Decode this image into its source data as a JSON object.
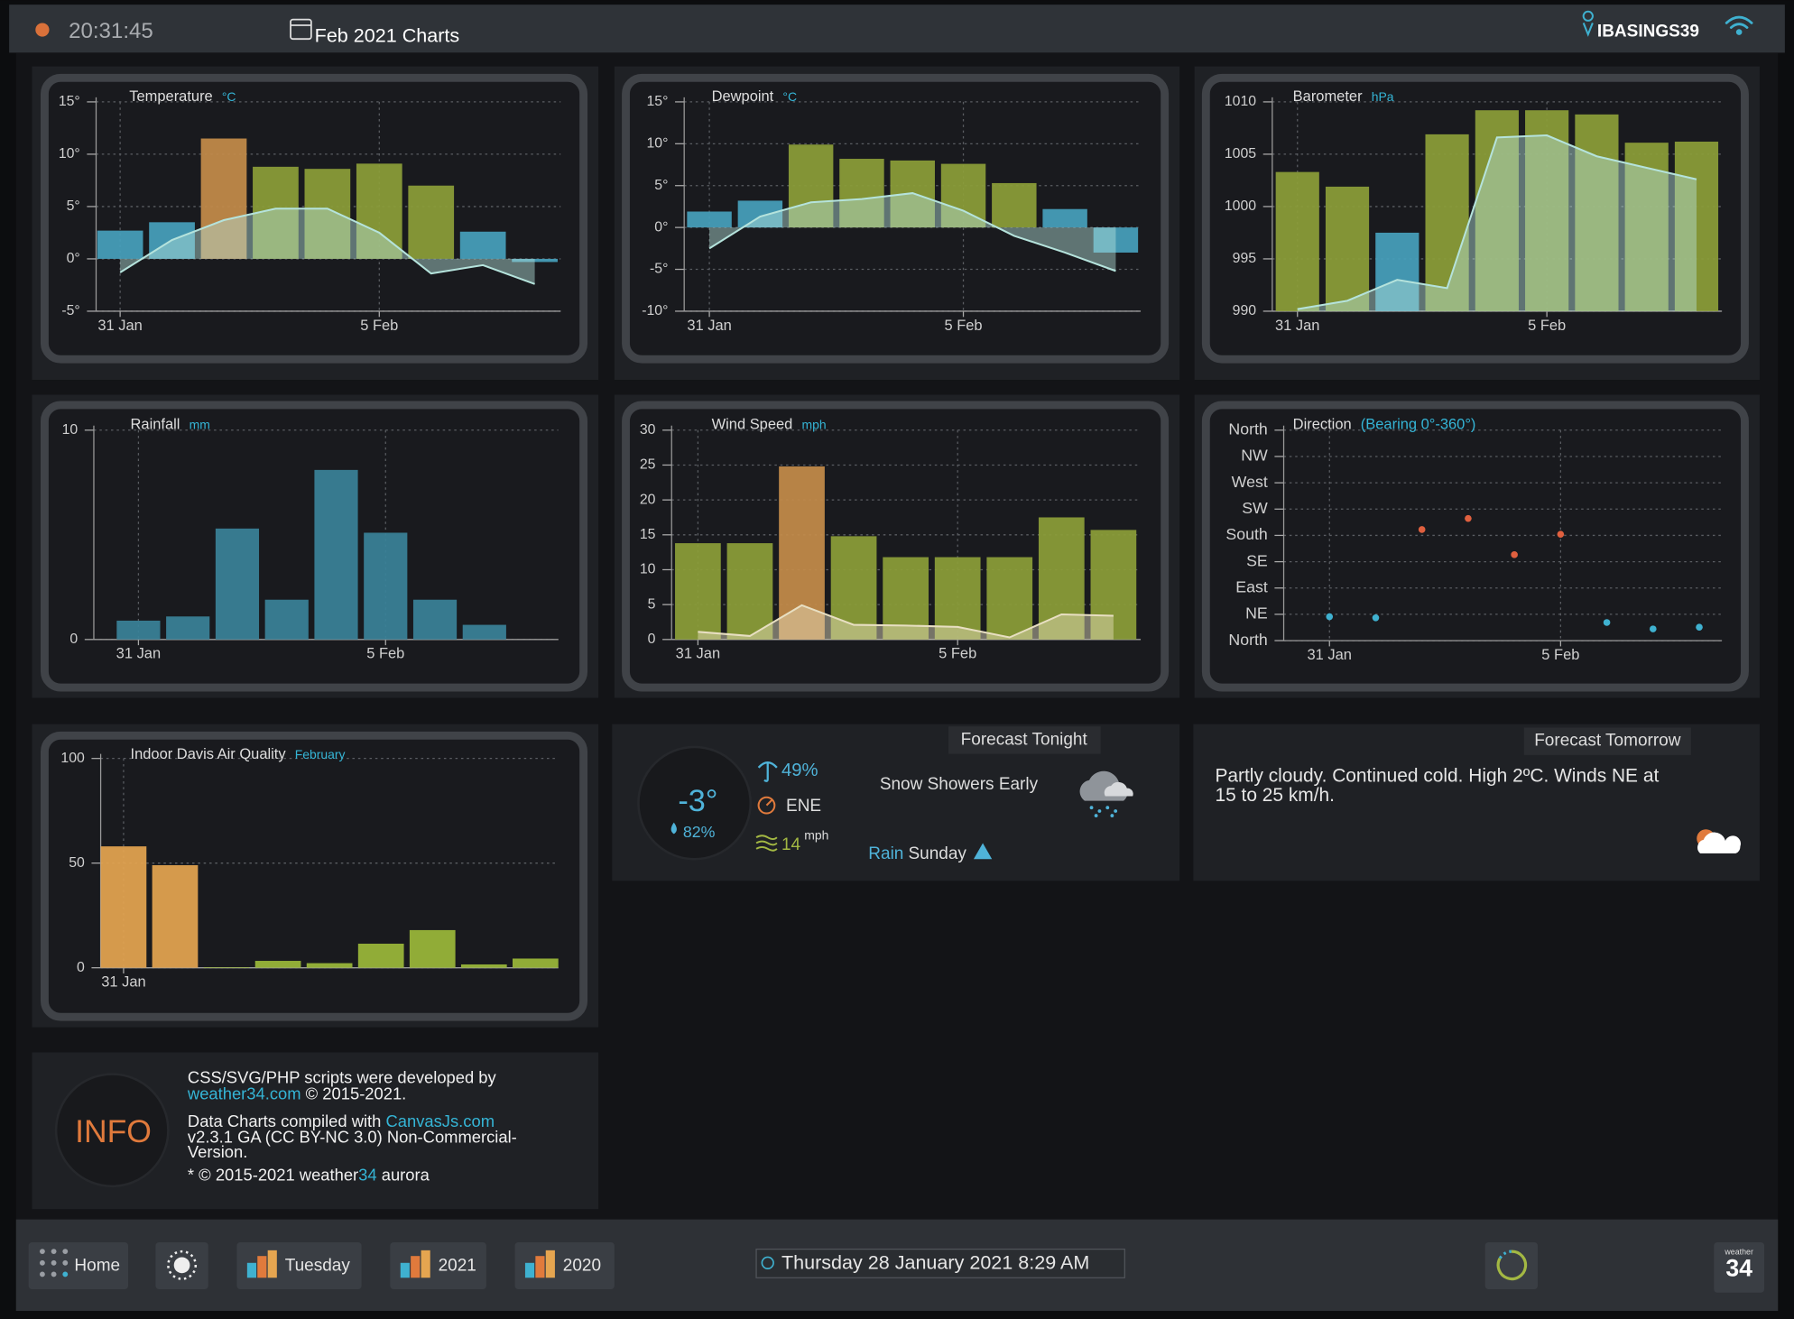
{
  "header": {
    "time": "20:31:45",
    "title": "Feb 2021 Charts",
    "station": "IBASINGS39"
  },
  "chart_data": [
    {
      "type": "bar",
      "title": "Temperature",
      "unit": "°C",
      "categories": [
        "31 Jan",
        null,
        null,
        null,
        null,
        "5 Feb",
        null,
        null,
        null
      ],
      "series": [
        {
          "type": "bar",
          "values": [
            2.7,
            3.5,
            11.5,
            8.8,
            8.6,
            9.1,
            7,
            2.6,
            -0.3
          ],
          "colors": [
            "#46a1bd",
            "#46a1bd",
            "#c48c4a",
            "#8c9e38",
            "#8c9e38",
            "#8c9e38",
            "#8c9e38",
            "#46a1bd",
            "#46a1bd"
          ]
        },
        {
          "type": "area",
          "values": [
            -1.3,
            1.8,
            3.7,
            4.8,
            4.8,
            2.5,
            -1.4,
            -0.6,
            -2.4
          ],
          "color": "#b5e3dc"
        }
      ],
      "ylim": [
        -5,
        15
      ],
      "yticks": [
        {
          "value": -5,
          "label": "-5°"
        },
        {
          "value": 0,
          "label": "0°"
        },
        {
          "value": 5,
          "label": "5°"
        },
        {
          "value": 10,
          "label": "10°"
        },
        {
          "value": 15,
          "label": "15°"
        }
      ],
      "grid": true
    },
    {
      "type": "bar",
      "title": "Dewpoint",
      "unit": "°C",
      "categories": [
        "31 Jan",
        null,
        null,
        null,
        null,
        "5 Feb",
        null,
        null,
        null
      ],
      "series": [
        {
          "type": "bar",
          "values": [
            1.9,
            3.2,
            9.9,
            8.2,
            8,
            7.6,
            5.3,
            2.2,
            -3
          ],
          "colors": [
            "#46a1bd",
            "#46a1bd",
            "#8c9e38",
            "#8c9e38",
            "#8c9e38",
            "#8c9e38",
            "#8c9e38",
            "#46a1bd",
            "#46a1bd"
          ]
        },
        {
          "type": "area",
          "values": [
            -2.5,
            1.3,
            3,
            3.4,
            4.1,
            2,
            -1,
            -3,
            -5.2
          ],
          "color": "#b5e3dc"
        }
      ],
      "ylim": [
        -10,
        15
      ],
      "yticks": [
        {
          "value": -10,
          "label": "-10°"
        },
        {
          "value": -5,
          "label": "-5°"
        },
        {
          "value": 0,
          "label": "0°"
        },
        {
          "value": 5,
          "label": "5°"
        },
        {
          "value": 10,
          "label": "10°"
        },
        {
          "value": 15,
          "label": "15°"
        }
      ],
      "grid": true
    },
    {
      "type": "bar",
      "title": "Barometer",
      "unit": "hPa",
      "categories": [
        "31 Jan",
        null,
        null,
        null,
        null,
        "5 Feb",
        null,
        null,
        null
      ],
      "series": [
        {
          "type": "bar",
          "values": [
            1003.3,
            1001.9,
            997.5,
            1006.9,
            1009.2,
            1009.2,
            1008.8,
            1006.1,
            1006.2
          ],
          "colors": [
            "#8c9e38",
            "#8c9e38",
            "#46a1bd",
            "#8c9e38",
            "#8c9e38",
            "#8c9e38",
            "#8c9e38",
            "#8c9e38",
            "#8c9e38"
          ]
        },
        {
          "type": "area",
          "values": [
            990.2,
            991,
            993,
            992.2,
            1006.6,
            1006.8,
            1004.8,
            1003.7,
            1002.6
          ],
          "color": "#b5e3dc"
        }
      ],
      "ylim": [
        990,
        1010
      ],
      "yticks": [
        990,
        995,
        1000,
        1005,
        1010
      ],
      "grid": true
    },
    {
      "type": "bar",
      "title": "Rainfall",
      "unit": "mm",
      "categories": [
        "31 Jan",
        null,
        null,
        null,
        null,
        "5 Feb",
        null,
        null
      ],
      "series": [
        {
          "type": "bar",
          "values": [
            0.9,
            1.1,
            5.3,
            1.9,
            8.1,
            5.1,
            1.9,
            0.7
          ],
          "colors": [
            "#3a8299",
            "#3a8299",
            "#3a8299",
            "#3a8299",
            "#3a8299",
            "#3a8299",
            "#3a8299",
            "#3a8299"
          ]
        }
      ],
      "ylim": [
        0,
        10
      ],
      "yticks": [
        0,
        10
      ],
      "grid": true
    },
    {
      "type": "bar",
      "title": "Wind Speed",
      "unit": "mph",
      "categories": [
        "31 Jan",
        null,
        null,
        null,
        null,
        "5 Feb",
        null,
        null,
        null
      ],
      "series": [
        {
          "type": "bar",
          "values": [
            13.8,
            13.8,
            24.8,
            14.8,
            11.8,
            11.8,
            11.8,
            17.5,
            15.7
          ],
          "colors": [
            "#8c9e38",
            "#8c9e38",
            "#c48c4a",
            "#8c9e38",
            "#8c9e38",
            "#8c9e38",
            "#8c9e38",
            "#8c9e38",
            "#8c9e38"
          ]
        },
        {
          "type": "area",
          "values": [
            1.1,
            0.5,
            4.9,
            2.1,
            2,
            1.8,
            0.3,
            3.6,
            3.4
          ],
          "color": "#e8dfc2"
        }
      ],
      "ylim": [
        0,
        30
      ],
      "yticks": [
        0,
        5,
        10,
        15,
        20,
        25,
        30
      ],
      "grid": true
    },
    {
      "type": "scatter",
      "title": "Direction",
      "unit": "(Bearing 0°-360°)",
      "categories": [
        "31 Jan",
        null,
        null,
        null,
        null,
        "5 Feb",
        null,
        null,
        null
      ],
      "values": [
        41,
        39,
        190,
        209,
        147,
        182,
        31,
        20,
        23
      ],
      "colors": [
        "#3fb1d0",
        "#3fb1d0",
        "#e0603f",
        "#e0603f",
        "#e0603f",
        "#e0603f",
        "#3fb1d0",
        "#3fb1d0",
        "#3fb1d0"
      ],
      "ylim": [
        0,
        360
      ],
      "yticks": [
        {
          "value": 0,
          "label": "North"
        },
        {
          "value": 45,
          "label": "NE"
        },
        {
          "value": 90,
          "label": "East"
        },
        {
          "value": 135,
          "label": "SE"
        },
        {
          "value": 180,
          "label": "South"
        },
        {
          "value": 225,
          "label": "SW"
        },
        {
          "value": 270,
          "label": "West"
        },
        {
          "value": 315,
          "label": "NW"
        },
        {
          "value": 360,
          "label": "North"
        }
      ],
      "grid": true
    },
    {
      "type": "bar",
      "title": "Indoor Davis Air Quality",
      "unit": "February",
      "categories": [
        "31 Jan",
        null,
        null,
        null,
        null,
        null,
        null,
        null,
        null
      ],
      "series": [
        {
          "type": "bar",
          "values": [
            58,
            49,
            0.3,
            3.3,
            2.2,
            11.5,
            18,
            1.6,
            4.4
          ],
          "colors": [
            "#e5a550",
            "#e5a550",
            "#9bb83a",
            "#9bb83a",
            "#9bb83a",
            "#9bb83a",
            "#9bb83a",
            "#9bb83a",
            "#9bb83a"
          ]
        }
      ],
      "ylim": [
        0,
        100
      ],
      "yticks": [
        0,
        50,
        100
      ],
      "grid": true
    }
  ],
  "forecast_tonight": {
    "title": "Forecast Tonight",
    "temperature": "-3°",
    "humidity": "82%",
    "rain_chance": "49%",
    "wind_direction": "ENE",
    "wind_speed": "14",
    "wind_unit": "mph",
    "summary": "Snow Showers Early",
    "alert_word": "Rain",
    "alert_day": "Sunday"
  },
  "forecast_tomorrow": {
    "title": "Forecast Tomorrow",
    "lines": [
      "Partly cloudy. Continued cold. High 2ºC. Winds NE at",
      "15 to 25 km/h."
    ]
  },
  "info": {
    "badge": "INFO",
    "lines": [
      [
        {
          "text": "CSS/SVG/PHP scripts were developed by"
        }
      ],
      [
        {
          "text": "weather34.com",
          "link": true
        },
        {
          "text": " © 2015-2021."
        }
      ],
      [
        {
          "text": "Data Charts compiled with "
        },
        {
          "text": "CanvasJs.com",
          "link": true
        }
      ],
      [
        {
          "text": "v2.3.1 GA (CC BY-NC 3.0) Non-Commercial-"
        }
      ],
      [
        {
          "text": "Version."
        }
      ],
      [
        {
          "text": "* © 2015-2021 weather"
        },
        {
          "text": "34",
          "link": true
        },
        {
          "text": " aurora"
        }
      ]
    ]
  },
  "footer": {
    "buttons": [
      "Home",
      "Tuesday",
      "2021",
      "2020"
    ],
    "datetime": "Thursday 28 January 2021 8:29 AM",
    "logo_small": "weather",
    "logo_big": "34"
  }
}
